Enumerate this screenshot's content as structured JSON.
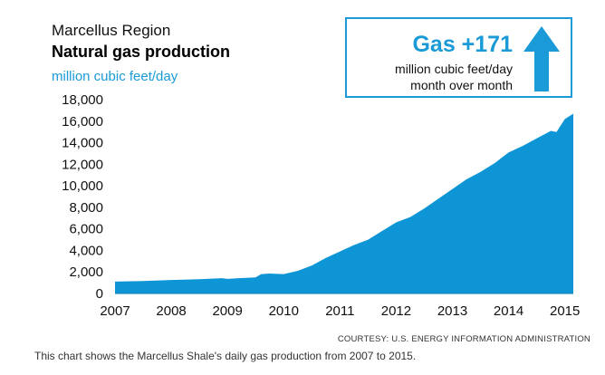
{
  "header": {
    "region": "Marcellus Region",
    "title": "Natural gas production",
    "unit": "million cubic feet/day"
  },
  "callout": {
    "headline": "Gas +171",
    "line1": "million cubic feet/day",
    "line2": "month over month",
    "icon": "arrow-up-icon"
  },
  "source": "COURTESY: U.S. ENERGY INFORMATION ADMINISTRATION",
  "caption": "This chart shows the Marcellus Shale's daily gas production from 2007 to 2015.",
  "colors": {
    "accent": "#1a9ad6",
    "area": "#0d95d6"
  },
  "chart_data": {
    "type": "area",
    "title": "Natural gas production",
    "ylabel": "million cubic feet/day",
    "xlabel": "",
    "xlim": [
      2007,
      2015.15
    ],
    "ylim": [
      0,
      18000
    ],
    "x_ticks": [
      2007,
      2008,
      2009,
      2010,
      2011,
      2012,
      2013,
      2014,
      2015
    ],
    "y_ticks": [
      0,
      2000,
      4000,
      6000,
      8000,
      10000,
      12000,
      14000,
      16000,
      18000
    ],
    "y_tick_labels": [
      "0",
      "2,000",
      "4,000",
      "6,000",
      "8,000",
      "10,000",
      "12,000",
      "14,000",
      "16,000",
      "18,000"
    ],
    "grid": false,
    "legend": "none",
    "series": [
      {
        "x": [
          2007.0,
          2007.5,
          2008.0,
          2008.5,
          2008.9,
          2009.0,
          2009.2,
          2009.5,
          2009.6,
          2009.75,
          2010.0,
          2010.25,
          2010.5,
          2010.75,
          2011.0,
          2011.25,
          2011.5,
          2011.75,
          2012.0,
          2012.25,
          2012.5,
          2012.75,
          2013.0,
          2013.25,
          2013.5,
          2013.75,
          2014.0,
          2014.25,
          2014.5,
          2014.75,
          2014.85,
          2015.0,
          2015.15
        ],
        "values": [
          1100,
          1150,
          1250,
          1330,
          1420,
          1350,
          1420,
          1500,
          1800,
          1850,
          1800,
          2100,
          2600,
          3300,
          3900,
          4500,
          5000,
          5800,
          6600,
          7100,
          7900,
          8800,
          9700,
          10600,
          11300,
          12100,
          13100,
          13700,
          14400,
          15100,
          15000,
          16200,
          16700
        ]
      }
    ]
  }
}
